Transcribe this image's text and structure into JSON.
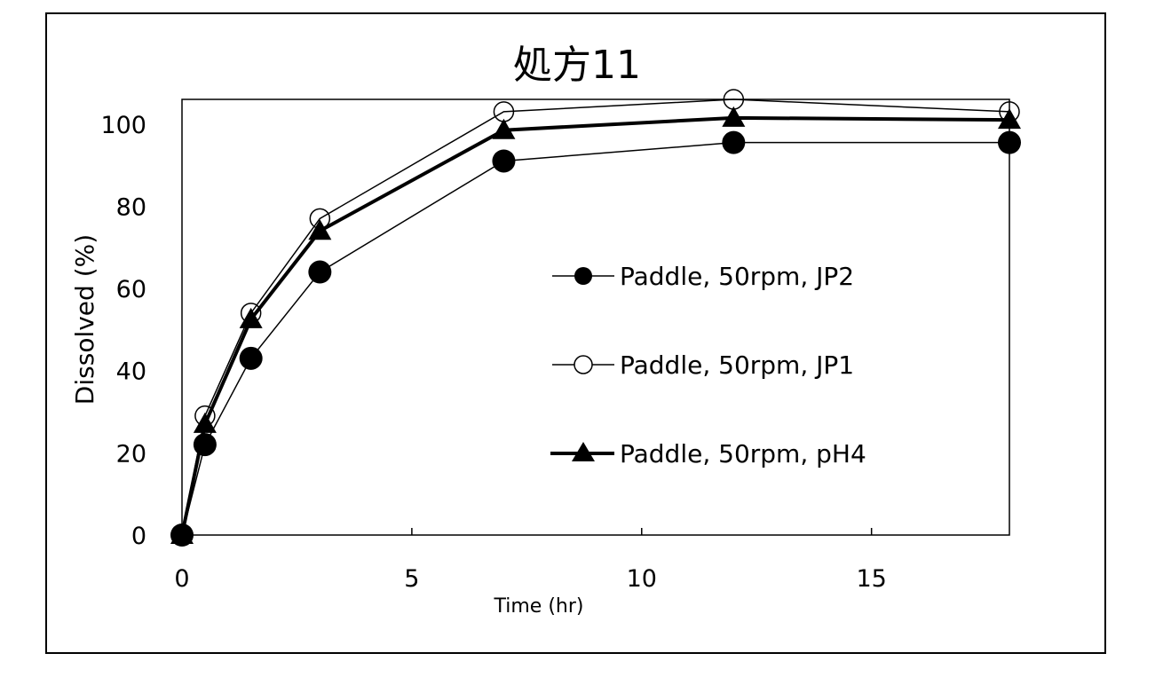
{
  "chart_data": {
    "type": "line",
    "title": "処方11",
    "xlabel": "Time (hr)",
    "ylabel": "Dissolved (%)",
    "xlim": [
      0,
      18
    ],
    "ylim": [
      0,
      106
    ],
    "xticks": [
      0,
      5,
      10,
      15
    ],
    "yticks": [
      0,
      20,
      40,
      60,
      80,
      100
    ],
    "grid": false,
    "legend_position": "center-right",
    "x": [
      0,
      0.5,
      1.5,
      3,
      7,
      12,
      18
    ],
    "series": [
      {
        "name": "Paddle, 50rpm, JP2",
        "marker": "filled-circle",
        "line": "thin",
        "values": [
          0,
          22,
          43,
          64,
          91,
          95.5,
          95.5
        ]
      },
      {
        "name": "Paddle, 50rpm, JP1",
        "marker": "open-circle",
        "line": "thin",
        "values": [
          0,
          29,
          54,
          77,
          103,
          106,
          103
        ]
      },
      {
        "name": "Paddle, 50rpm, pH4",
        "marker": "filled-triangle",
        "line": "thick",
        "values": [
          0,
          27,
          52.5,
          74,
          98.5,
          101.5,
          101
        ]
      }
    ],
    "colors": {
      "line": "#000000",
      "background": "#ffffff"
    }
  }
}
